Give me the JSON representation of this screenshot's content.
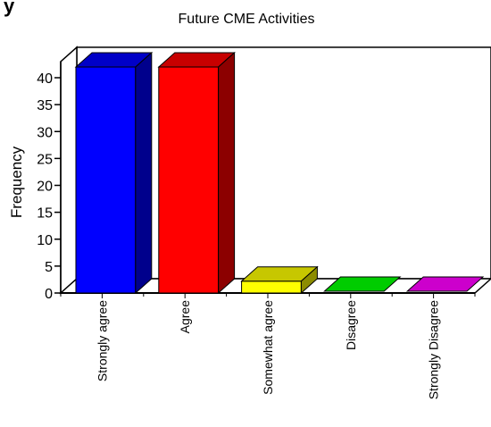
{
  "page": {
    "heading": "y"
  },
  "chart_data": {
    "type": "bar",
    "title": "Future CME Activities",
    "xlabel": "",
    "ylabel": "Frequency",
    "categories": [
      "Strongly agree",
      "Agree",
      "Somewhat agree",
      "Disagree",
      "Strongly Disagree"
    ],
    "values": [
      42,
      42,
      2,
      0,
      0
    ],
    "colors": [
      "#0000ff",
      "#ff0000",
      "#ffff00",
      "#00cc00",
      "#cc00cc"
    ],
    "yticks": [
      0,
      5,
      10,
      15,
      20,
      25,
      30,
      35,
      40
    ],
    "ylim": [
      0,
      43
    ],
    "grid": false,
    "legend": "none",
    "style": "3d"
  }
}
